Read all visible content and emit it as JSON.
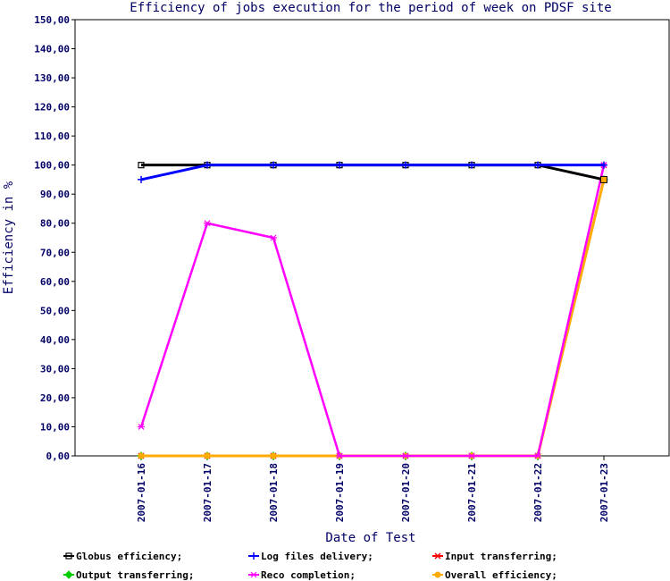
{
  "chart_data": {
    "type": "line",
    "title": "Efficiency of jobs execution for the period of week on  PDSF site",
    "xlabel": "Date of Test",
    "ylabel": "Efficiency in %",
    "ylim": [
      0,
      150
    ],
    "yticks": [
      "0,00",
      "10,00",
      "20,00",
      "30,00",
      "40,00",
      "50,00",
      "60,00",
      "70,00",
      "80,00",
      "90,00",
      "100,00",
      "110,00",
      "120,00",
      "130,00",
      "140,00",
      "150,00"
    ],
    "categories": [
      "2007-01-16",
      "2007-01-17",
      "2007-01-18",
      "2007-01-19",
      "2007-01-20",
      "2007-01-21",
      "2007-01-22",
      "2007-01-23"
    ],
    "grid": false,
    "legend_position": "bottom",
    "series": [
      {
        "name": "Globus efficiency;",
        "color": "#000000",
        "marker": "square",
        "values": [
          100,
          100,
          100,
          100,
          100,
          100,
          100,
          95
        ]
      },
      {
        "name": "Log files delivery;",
        "color": "#0000ff",
        "marker": "plus",
        "values": [
          95,
          100,
          100,
          100,
          100,
          100,
          100,
          100
        ]
      },
      {
        "name": "Input transferring;",
        "color": "#ff0000",
        "marker": "x",
        "values": [
          0,
          0,
          0,
          0,
          0,
          0,
          0,
          100
        ]
      },
      {
        "name": "Output transferring;",
        "color": "#00cc00",
        "marker": "diamond",
        "values": [
          0,
          0,
          0,
          0,
          0,
          0,
          0,
          95
        ]
      },
      {
        "name": "Reco completion;",
        "color": "#ff00ff",
        "marker": "star",
        "values": [
          10,
          80,
          75,
          0,
          0,
          0,
          0,
          100
        ]
      },
      {
        "name": "Overall efficiency;",
        "color": "#ffaa00",
        "marker": "circle",
        "values": [
          0,
          0,
          0,
          0,
          0,
          0,
          0,
          95
        ]
      }
    ]
  }
}
